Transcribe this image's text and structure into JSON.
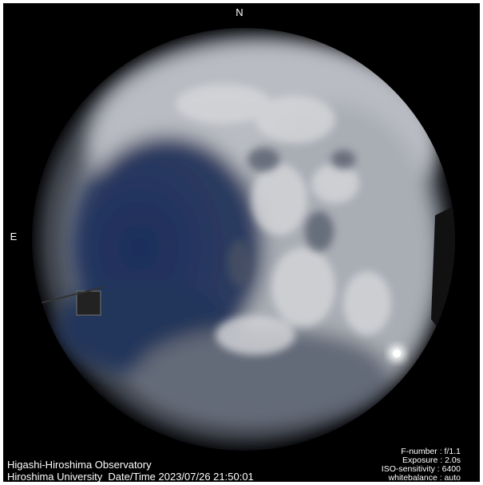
{
  "compass": {
    "north": "N",
    "east": "E"
  },
  "caption": {
    "line1": "Higashi-Hiroshima Observatory",
    "line2": "Hiroshima University  Date/Time 2023/07/26 21:50:01"
  },
  "camera": [
    "F-number : f/1.1",
    "Exposure : 2.0s",
    "ISO-sensitivity : 6400",
    "whitebalance : auto"
  ]
}
